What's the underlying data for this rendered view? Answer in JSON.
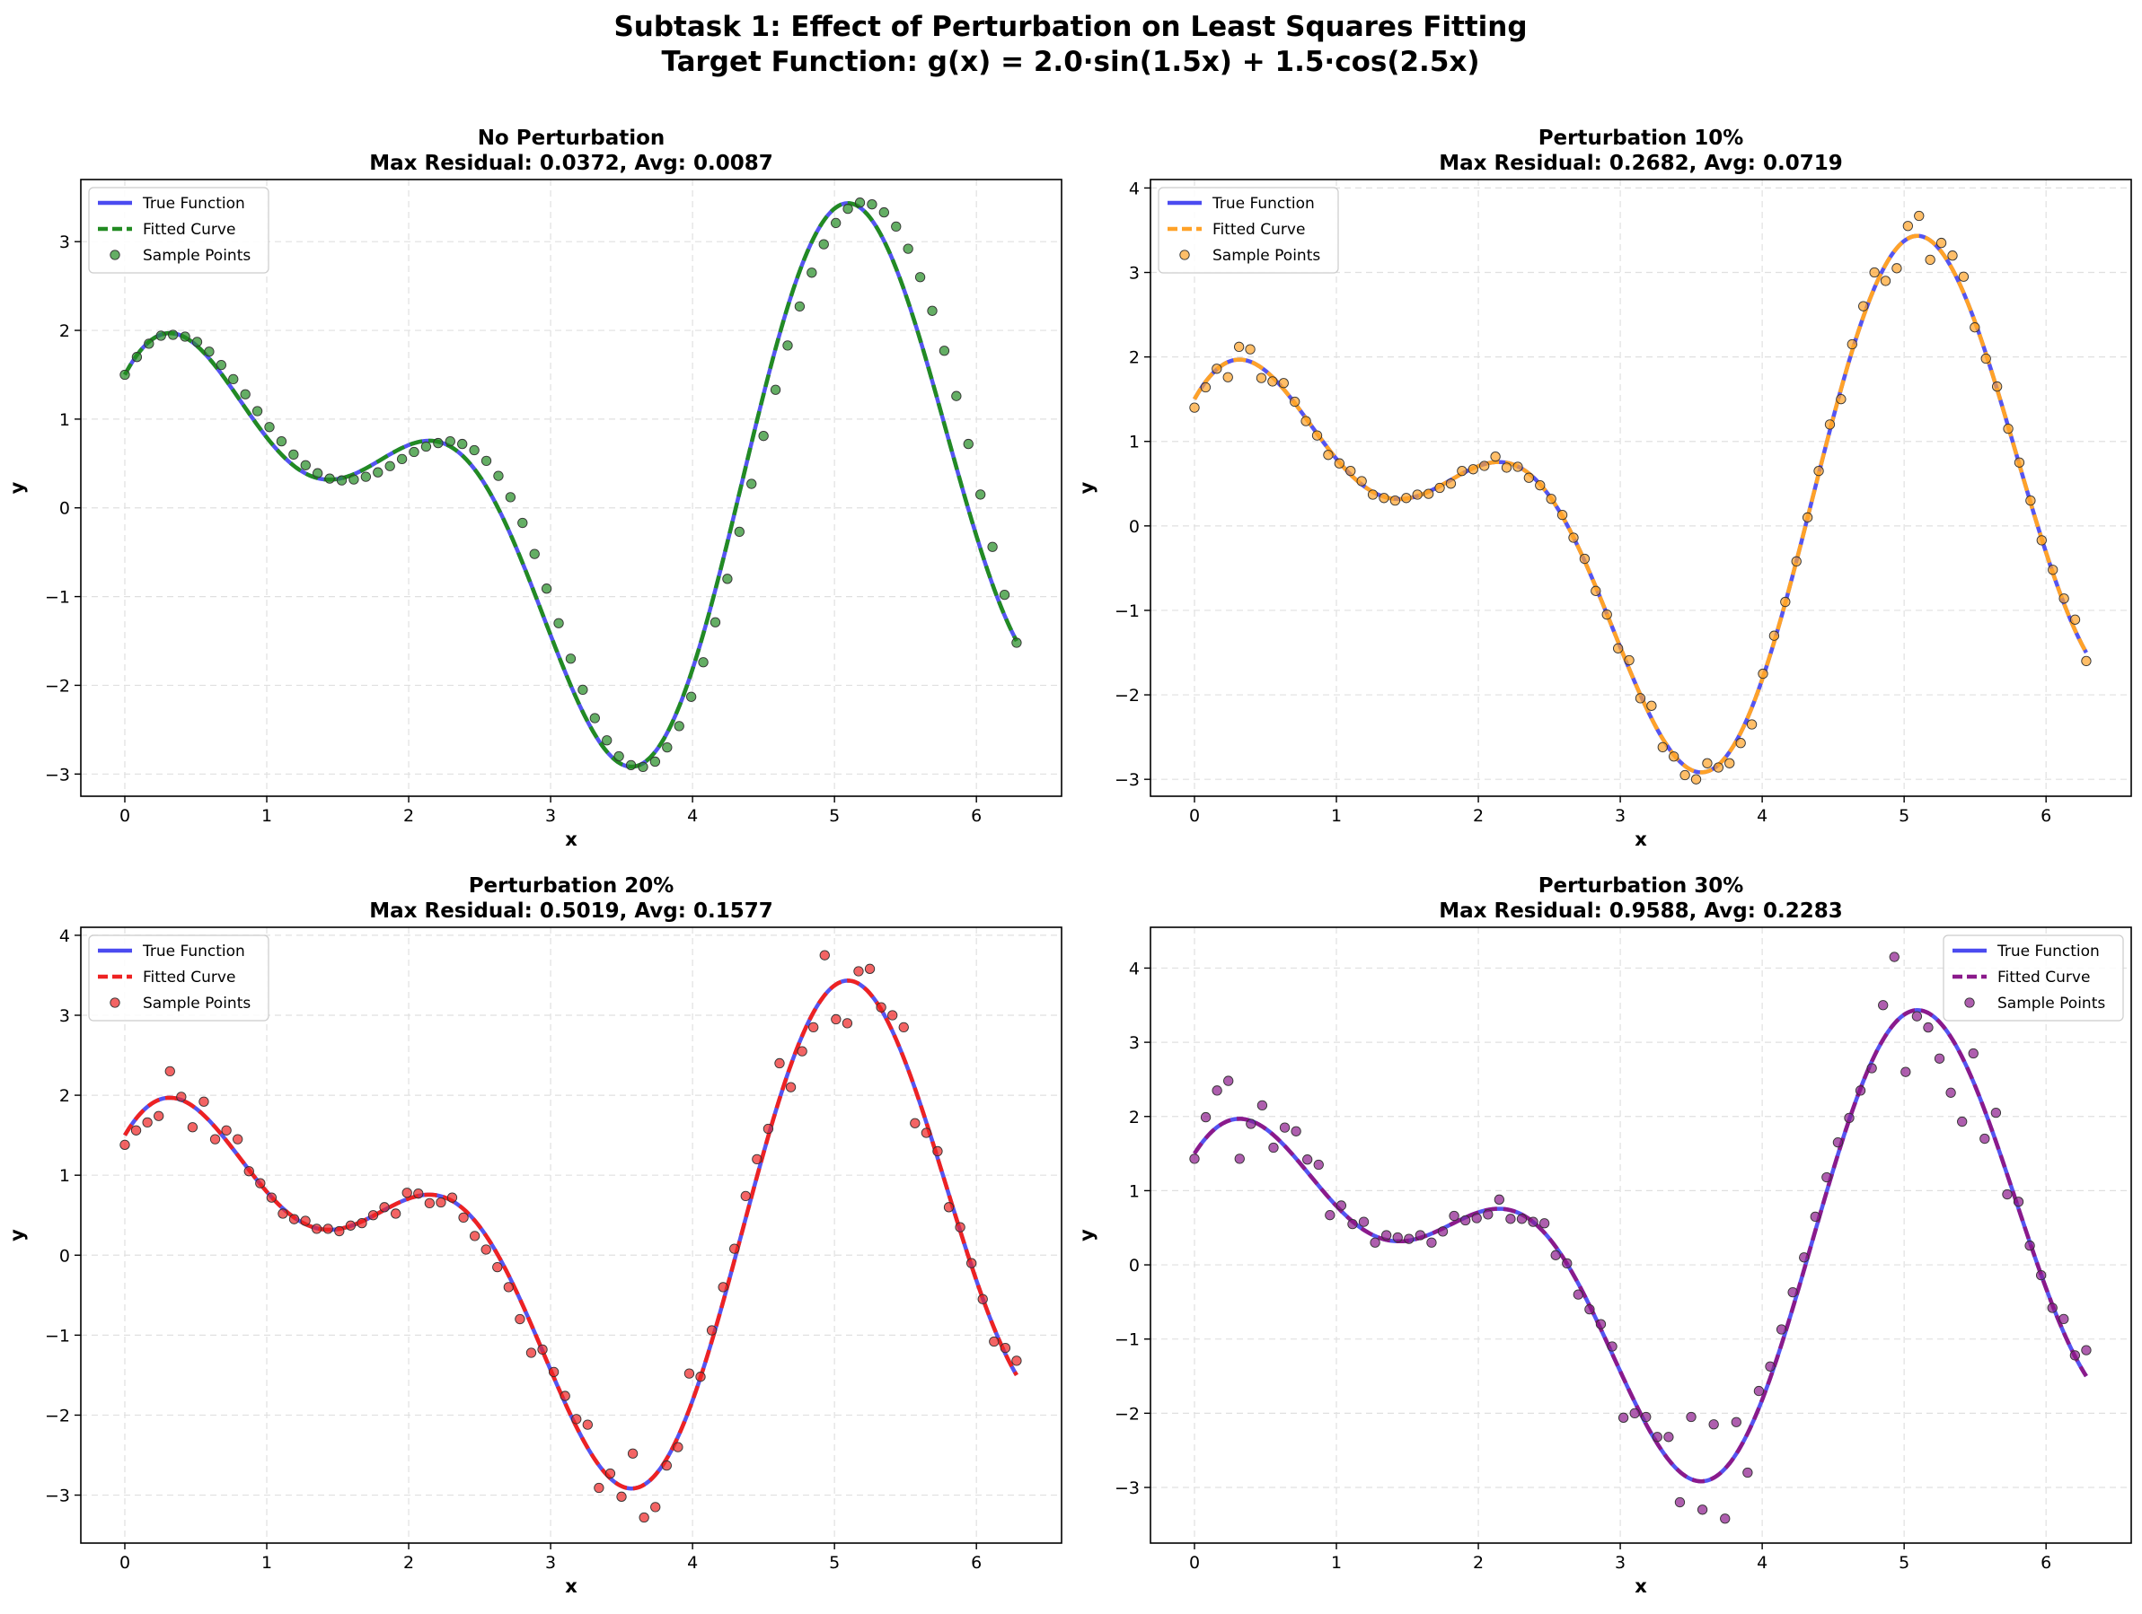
{
  "suptitle": {
    "line1": "Subtask 1: Effect of Perturbation on Least Squares Fitting",
    "line2": "Target Function: g(x) = 2.0·sin(1.5x) + 1.5·cos(2.5x)"
  },
  "colors": {
    "true_function": "#4b4bf0",
    "grid": "#e0e0e0"
  },
  "chart_data": [
    {
      "type": "line",
      "title_line1": "No Perturbation",
      "title_line2": "Max Residual: 0.0372, Avg: 0.0087",
      "xlabel": "x",
      "ylabel": "y",
      "xlim": [
        -0.31,
        6.6
      ],
      "ylim": [
        -3.25,
        3.7
      ],
      "xticks": [
        0,
        1,
        2,
        3,
        4,
        5,
        6
      ],
      "yticks": [
        -3,
        -2,
        -1,
        0,
        1,
        2,
        3
      ],
      "ytick_labels": [
        "−3",
        "−2",
        "−1",
        "0",
        "1",
        "2",
        "3"
      ],
      "grid": true,
      "legend_position": "upper left",
      "fit_color": "#228b22",
      "series": [
        {
          "name": "True Function",
          "style": "solid"
        },
        {
          "name": "Fitted Curve",
          "style": "dashed"
        },
        {
          "name": "Sample Points",
          "style": "scatter"
        }
      ],
      "x_range": [
        0,
        6.2832
      ],
      "sample_y": [
        1.5,
        1.7,
        1.85,
        1.94,
        1.95,
        1.93,
        1.87,
        1.76,
        1.61,
        1.45,
        1.28,
        1.09,
        0.91,
        0.75,
        0.6,
        0.48,
        0.39,
        0.33,
        0.31,
        0.32,
        0.35,
        0.4,
        0.47,
        0.55,
        0.63,
        0.69,
        0.73,
        0.75,
        0.72,
        0.65,
        0.53,
        0.36,
        0.12,
        -0.17,
        -0.52,
        -0.91,
        -1.3,
        -1.7,
        -2.05,
        -2.37,
        -2.62,
        -2.8,
        -2.9,
        -2.92,
        -2.86,
        -2.7,
        -2.46,
        -2.13,
        -1.74,
        -1.29,
        -0.8,
        -0.27,
        0.27,
        0.81,
        1.33,
        1.83,
        2.27,
        2.65,
        2.97,
        3.21,
        3.37,
        3.44,
        3.42,
        3.33,
        3.17,
        2.92,
        2.6,
        2.22,
        1.77,
        1.26,
        0.72,
        0.15,
        -0.44,
        -0.98,
        -1.52
      ]
    },
    {
      "type": "line",
      "title_line1": "Perturbation 10%",
      "title_line2": "Max Residual: 0.2682, Avg: 0.0719",
      "xlabel": "x",
      "ylabel": "y",
      "xlim": [
        -0.31,
        6.6
      ],
      "ylim": [
        -3.2,
        4.1
      ],
      "xticks": [
        0,
        1,
        2,
        3,
        4,
        5,
        6
      ],
      "yticks": [
        -3,
        -2,
        -1,
        0,
        1,
        2,
        3,
        4
      ],
      "ytick_labels": [
        "−3",
        "−2",
        "−1",
        "0",
        "1",
        "2",
        "3",
        "4"
      ],
      "grid": true,
      "legend_position": "upper left",
      "fit_color": "#ffa228",
      "series": [
        {
          "name": "True Function",
          "style": "solid"
        },
        {
          "name": "Fitted Curve",
          "style": "dashed"
        },
        {
          "name": "Sample Points",
          "style": "scatter"
        }
      ],
      "x_range": [
        0,
        6.2832
      ],
      "sample_y": [
        1.4,
        1.64,
        1.86,
        1.76,
        2.12,
        2.09,
        1.75,
        1.71,
        1.69,
        1.47,
        1.24,
        1.07,
        0.84,
        0.74,
        0.65,
        0.53,
        0.37,
        0.33,
        0.3,
        0.33,
        0.37,
        0.38,
        0.45,
        0.5,
        0.65,
        0.67,
        0.71,
        0.82,
        0.69,
        0.7,
        0.57,
        0.48,
        0.32,
        0.13,
        -0.14,
        -0.39,
        -0.77,
        -1.05,
        -1.45,
        -1.59,
        -2.04,
        -2.13,
        -2.62,
        -2.73,
        -2.95,
        -3.0,
        -2.81,
        -2.86,
        -2.81,
        -2.57,
        -2.35,
        -1.75,
        -1.3,
        -0.9,
        -0.42,
        0.1,
        0.65,
        1.2,
        1.5,
        2.15,
        2.6,
        3.0,
        2.9,
        3.05,
        3.55,
        3.67,
        3.15,
        3.35,
        3.2,
        2.95,
        2.35,
        1.98,
        1.65,
        1.15,
        0.75,
        0.3,
        -0.17,
        -0.52,
        -0.86,
        -1.11,
        -1.6
      ]
    },
    {
      "type": "line",
      "title_line1": "Perturbation 20%",
      "title_line2": "Max Residual: 0.5019, Avg: 0.1577",
      "xlabel": "x",
      "ylabel": "y",
      "xlim": [
        -0.31,
        6.6
      ],
      "ylim": [
        -3.6,
        4.1
      ],
      "xticks": [
        0,
        1,
        2,
        3,
        4,
        5,
        6
      ],
      "yticks": [
        -3,
        -2,
        -1,
        0,
        1,
        2,
        3,
        4
      ],
      "ytick_labels": [
        "−3",
        "−2",
        "−1",
        "0",
        "1",
        "2",
        "3",
        "4"
      ],
      "grid": true,
      "legend_position": "upper left",
      "fit_color": "#ee2222",
      "series": [
        {
          "name": "True Function",
          "style": "solid"
        },
        {
          "name": "Fitted Curve",
          "style": "dashed"
        },
        {
          "name": "Sample Points",
          "style": "scatter"
        }
      ],
      "x_range": [
        0,
        6.2832
      ],
      "sample_y": [
        1.38,
        1.56,
        1.66,
        1.74,
        2.3,
        1.98,
        1.6,
        1.92,
        1.45,
        1.56,
        1.45,
        1.05,
        0.9,
        0.72,
        0.52,
        0.45,
        0.43,
        0.33,
        0.33,
        0.3,
        0.37,
        0.4,
        0.5,
        0.6,
        0.52,
        0.78,
        0.77,
        0.65,
        0.66,
        0.72,
        0.47,
        0.24,
        0.07,
        -0.15,
        -0.4,
        -0.8,
        -1.22,
        -1.18,
        -1.46,
        -1.76,
        -2.05,
        -2.12,
        -2.91,
        -2.73,
        -3.02,
        -2.48,
        -3.28,
        -3.15,
        -2.63,
        -2.4,
        -1.48,
        -1.52,
        -0.94,
        -0.4,
        0.08,
        0.74,
        1.2,
        1.58,
        2.4,
        2.1,
        2.55,
        2.85,
        3.75,
        2.95,
        2.9,
        3.55,
        3.58,
        3.1,
        3.0,
        2.85,
        1.65,
        1.53,
        1.3,
        0.6,
        0.35,
        -0.1,
        -0.55,
        -1.08,
        -1.16,
        -1.32
      ]
    },
    {
      "type": "line",
      "title_line1": "Perturbation 30%",
      "title_line2": "Max Residual: 0.9588, Avg: 0.2283",
      "xlabel": "x",
      "ylabel": "y",
      "xlim": [
        -0.31,
        6.6
      ],
      "ylim": [
        -3.75,
        4.55
      ],
      "xticks": [
        0,
        1,
        2,
        3,
        4,
        5,
        6
      ],
      "yticks": [
        -3,
        -2,
        -1,
        0,
        1,
        2,
        3,
        4
      ],
      "ytick_labels": [
        "−3",
        "−2",
        "−1",
        "0",
        "1",
        "2",
        "3",
        "4"
      ],
      "grid": true,
      "legend_position": "upper right",
      "fit_color": "#8b1a8b",
      "series": [
        {
          "name": "True Function",
          "style": "solid"
        },
        {
          "name": "Fitted Curve",
          "style": "dashed"
        },
        {
          "name": "Sample Points",
          "style": "scatter"
        }
      ],
      "x_range": [
        0,
        6.2832
      ],
      "sample_y": [
        1.43,
        1.99,
        2.35,
        2.48,
        1.43,
        1.9,
        2.15,
        1.58,
        1.85,
        1.8,
        1.42,
        1.35,
        0.67,
        0.8,
        0.55,
        0.58,
        0.3,
        0.4,
        0.37,
        0.35,
        0.4,
        0.3,
        0.45,
        0.66,
        0.6,
        0.63,
        0.68,
        0.88,
        0.62,
        0.62,
        0.58,
        0.56,
        0.13,
        0.02,
        -0.4,
        -0.6,
        -0.8,
        -1.1,
        -2.06,
        -2.0,
        -2.05,
        -2.32,
        -2.32,
        -3.2,
        -2.05,
        -3.3,
        -2.15,
        -3.42,
        -2.12,
        -2.8,
        -1.7,
        -1.37,
        -0.87,
        -0.37,
        0.1,
        0.65,
        1.18,
        1.65,
        1.98,
        2.35,
        2.65,
        3.5,
        4.15,
        2.6,
        3.35,
        3.2,
        2.78,
        2.32,
        1.93,
        2.85,
        1.7,
        2.05,
        0.95,
        0.85,
        0.26,
        -0.14,
        -0.58,
        -0.73,
        -1.22,
        -1.15
      ]
    }
  ]
}
